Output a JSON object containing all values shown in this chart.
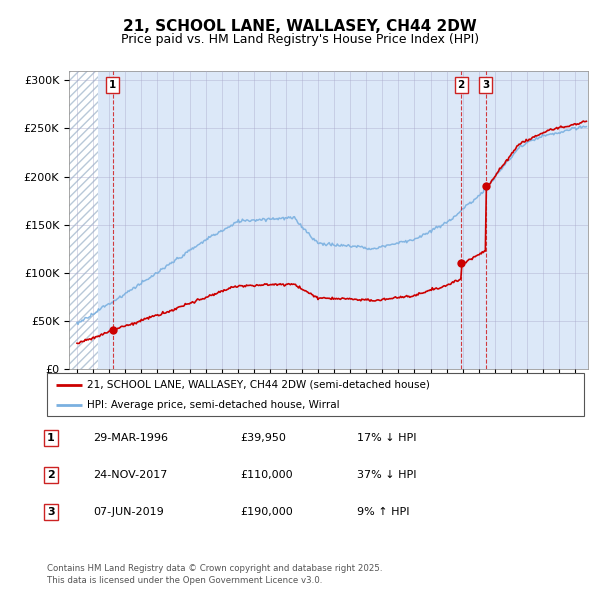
{
  "title": "21, SCHOOL LANE, WALLASEY, CH44 2DW",
  "subtitle": "Price paid vs. HM Land Registry's House Price Index (HPI)",
  "title_fontsize": 11,
  "subtitle_fontsize": 9,
  "ylim": [
    0,
    310000
  ],
  "yticks": [
    0,
    50000,
    100000,
    150000,
    200000,
    250000,
    300000
  ],
  "ytick_labels": [
    "£0",
    "£50K",
    "£100K",
    "£150K",
    "£200K",
    "£250K",
    "£300K"
  ],
  "plot_bg_color": "#dce8f8",
  "hatch_color": "#b8c8d8",
  "grid_color": "#aaaacc",
  "sale_color": "#cc0000",
  "hpi_color": "#7ab0e0",
  "sales": [
    {
      "year": 1996.23,
      "price": 39950,
      "label": "1"
    },
    {
      "year": 2017.9,
      "price": 110000,
      "label": "2"
    },
    {
      "year": 2019.44,
      "price": 190000,
      "label": "3"
    }
  ],
  "legend_sale_label": "21, SCHOOL LANE, WALLASEY, CH44 2DW (semi-detached house)",
  "legend_hpi_label": "HPI: Average price, semi-detached house, Wirral",
  "table_rows": [
    {
      "num": "1",
      "date": "29-MAR-1996",
      "price": "£39,950",
      "hpi": "17% ↓ HPI"
    },
    {
      "num": "2",
      "date": "24-NOV-2017",
      "price": "£110,000",
      "hpi": "37% ↓ HPI"
    },
    {
      "num": "3",
      "date": "07-JUN-2019",
      "price": "£190,000",
      "hpi": "9% ↑ HPI"
    }
  ],
  "footer": "Contains HM Land Registry data © Crown copyright and database right 2025.\nThis data is licensed under the Open Government Licence v3.0.",
  "xmin": 1993.5,
  "xmax": 2025.8,
  "hatch_xmax": 1995.3
}
